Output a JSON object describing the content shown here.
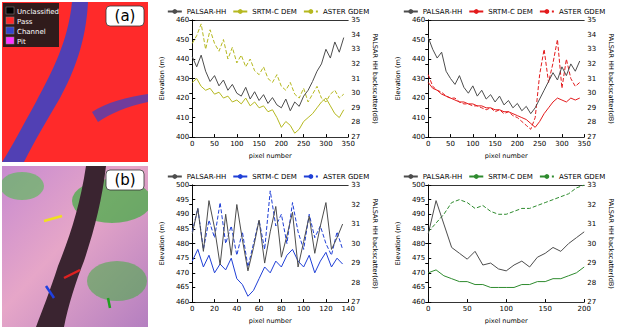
{
  "image_panels": [
    {
      "letter": "(a)",
      "legend": [
        {
          "label": "Unclassified",
          "color": "#000000"
        },
        {
          "label": "Pass",
          "color": "#ff2a2a"
        },
        {
          "label": "Channel",
          "color": "#3344cc"
        },
        {
          "label": "Pit",
          "color": "#ff33ff"
        }
      ]
    },
    {
      "letter": "(b)"
    }
  ],
  "chart_data": [
    {
      "type": "line",
      "x_label": "pixel number",
      "y_label": "Elevation (m)",
      "y2_label": "PALSAR HH backscatter(dB)",
      "legend": "top",
      "x": [
        0,
        10,
        20,
        30,
        40,
        50,
        60,
        70,
        80,
        90,
        100,
        110,
        120,
        130,
        140,
        150,
        160,
        170,
        180,
        190,
        200,
        210,
        220,
        230,
        240,
        250,
        260,
        270,
        280,
        290,
        300,
        310,
        320,
        330,
        340
      ],
      "xlim": [
        0,
        350
      ],
      "xticks": [
        0,
        50,
        100,
        150,
        200,
        250,
        300,
        350
      ],
      "ylim": [
        400,
        460
      ],
      "yticks": [
        400,
        410,
        420,
        430,
        440,
        450,
        460
      ],
      "y2lim": [
        27,
        35
      ],
      "y2ticks": [
        27,
        28,
        29,
        30,
        31,
        32,
        33,
        34,
        35
      ],
      "series": [
        {
          "name": "PALSAR-HH",
          "color": "#4d4d4d",
          "line_style": "solid",
          "axis": "y2",
          "values": [
            32.5,
            31.8,
            32.6,
            31.5,
            30.8,
            31.2,
            30.5,
            30.9,
            30.2,
            30.6,
            30.0,
            29.8,
            30.4,
            29.6,
            30.1,
            29.5,
            29.9,
            29.3,
            29.7,
            29.2,
            29.0,
            29.6,
            28.8,
            29.4,
            29.1,
            29.8,
            30.2,
            30.8,
            31.5,
            32.0,
            33.0,
            32.4,
            33.5,
            32.8,
            33.8
          ]
        },
        {
          "name": "SRTM-C DEM",
          "color": "#b5b820",
          "line_style": "solid",
          "values": [
            428,
            430,
            426,
            424,
            425,
            422,
            423,
            420,
            421,
            418,
            419,
            417,
            420,
            416,
            418,
            415,
            416,
            413,
            414,
            410,
            405,
            408,
            406,
            402,
            404,
            408,
            410,
            412,
            415,
            418,
            420,
            416,
            412,
            410,
            414
          ]
        },
        {
          "name": "ASTER GDEM",
          "color": "#b5b820",
          "line_style": "dashed",
          "values": [
            448,
            452,
            458,
            445,
            455,
            448,
            444,
            450,
            440,
            446,
            438,
            442,
            436,
            440,
            434,
            432,
            436,
            430,
            428,
            432,
            426,
            424,
            428,
            422,
            420,
            425,
            418,
            422,
            426,
            420,
            418,
            422,
            424,
            420,
            422
          ]
        }
      ]
    },
    {
      "type": "line",
      "x_label": "pixel number",
      "y_label": "Elevation (m)",
      "y2_label": "PALSAR HH backscatter(dB)",
      "legend": "top",
      "x": [
        0,
        10,
        20,
        30,
        40,
        50,
        60,
        70,
        80,
        90,
        100,
        110,
        120,
        130,
        140,
        150,
        160,
        170,
        180,
        190,
        200,
        210,
        220,
        230,
        240,
        250,
        260,
        270,
        280,
        290,
        300,
        310,
        320,
        330,
        340
      ],
      "xlim": [
        0,
        350
      ],
      "xticks": [
        0,
        50,
        100,
        150,
        200,
        250,
        300,
        350
      ],
      "ylim": [
        400,
        460
      ],
      "yticks": [
        400,
        410,
        420,
        430,
        440,
        450,
        460
      ],
      "y2lim": [
        27,
        35
      ],
      "y2ticks": [
        27,
        28,
        29,
        30,
        31,
        32,
        33,
        34,
        35
      ],
      "series": [
        {
          "name": "PALSAR-HH",
          "color": "#4d4d4d",
          "line_style": "solid",
          "axis": "y2",
          "values": [
            33.8,
            33.0,
            32.4,
            32.8,
            31.5,
            31.0,
            30.6,
            31.2,
            30.4,
            30.0,
            30.5,
            29.8,
            30.2,
            29.6,
            29.9,
            29.4,
            29.8,
            29.2,
            29.5,
            29.0,
            29.3,
            28.8,
            29.1,
            28.6,
            29.0,
            29.6,
            30.2,
            30.8,
            31.4,
            30.9,
            31.8,
            31.2,
            32.0,
            31.5,
            32.2
          ]
        },
        {
          "name": "SRTM-C DEM",
          "color": "#e31a1c",
          "line_style": "solid",
          "values": [
            428,
            425,
            424,
            422,
            421,
            420,
            419,
            418,
            418,
            417,
            417,
            416,
            416,
            415,
            415,
            414,
            414,
            413,
            413,
            412,
            411,
            410,
            409,
            407,
            405,
            408,
            412,
            415,
            418,
            420,
            419,
            418,
            420,
            419,
            420
          ]
        },
        {
          "name": "ASTER GDEM",
          "color": "#e31a1c",
          "line_style": "dashed",
          "values": [
            432,
            426,
            424,
            423,
            421,
            420,
            420,
            418,
            417,
            417,
            416,
            416,
            415,
            414,
            415,
            413,
            414,
            412,
            413,
            411,
            410,
            408,
            406,
            404,
            410,
            432,
            445,
            428,
            438,
            450,
            425,
            440,
            430,
            426,
            428
          ]
        }
      ]
    },
    {
      "type": "line",
      "x_label": "pixel number",
      "y_label": "Elevation (m)",
      "y2_label": "PALSAR HH backscatter(dB)",
      "legend": "top",
      "x": [
        0,
        5,
        10,
        15,
        20,
        25,
        30,
        35,
        40,
        45,
        50,
        55,
        60,
        65,
        70,
        75,
        80,
        85,
        90,
        95,
        100,
        105,
        110,
        115,
        120,
        125,
        130,
        135
      ],
      "xlim": [
        0,
        140
      ],
      "xticks": [
        0,
        20,
        40,
        60,
        80,
        100,
        120,
        140
      ],
      "ylim": [
        460,
        500
      ],
      "yticks": [
        460,
        465,
        470,
        475,
        480,
        485,
        490,
        495,
        500
      ],
      "y2lim": [
        27,
        33
      ],
      "y2ticks": [
        27,
        28,
        29,
        30,
        31,
        32,
        33
      ],
      "series": [
        {
          "name": "PALSAR-HH",
          "color": "#4d4d4d",
          "line_style": "solid",
          "axis": "y2",
          "values": [
            30.5,
            31.8,
            29.6,
            32.2,
            30.8,
            28.9,
            31.5,
            29.4,
            32.0,
            30.2,
            28.6,
            29.8,
            31.2,
            29.0,
            30.6,
            31.9,
            29.3,
            30.4,
            31.6,
            28.8,
            30.1,
            31.4,
            29.5,
            30.9,
            32.1,
            29.7,
            30.3,
            31.0
          ]
        },
        {
          "name": "SRTM-C DEM",
          "color": "#1f3fd6",
          "line_style": "solid",
          "values": [
            474,
            478,
            472,
            476,
            470,
            473,
            471,
            475,
            468,
            466,
            462,
            464,
            468,
            472,
            470,
            474,
            472,
            476,
            478,
            474,
            472,
            476,
            470,
            474,
            477,
            472,
            475,
            473
          ]
        },
        {
          "name": "ASTER GDEM",
          "color": "#1f3fd6",
          "line_style": "dashed",
          "values": [
            484,
            492,
            478,
            488,
            482,
            494,
            480,
            486,
            476,
            484,
            472,
            480,
            488,
            478,
            498,
            486,
            490,
            480,
            494,
            484,
            478,
            490,
            482,
            486,
            480,
            476,
            484,
            478
          ]
        }
      ]
    },
    {
      "type": "line",
      "x_label": "pixel number",
      "y_label": "Elevation (m)",
      "y2_label": "PALSAR HH backscatter(dB)",
      "legend": "top",
      "x": [
        0,
        10,
        20,
        30,
        40,
        50,
        60,
        70,
        80,
        90,
        100,
        110,
        120,
        130,
        140,
        150,
        160,
        170,
        180,
        190,
        200
      ],
      "xlim": [
        0,
        200
      ],
      "xticks": [
        0,
        50,
        100,
        150,
        200
      ],
      "ylim": [
        460,
        500
      ],
      "yticks": [
        460,
        465,
        470,
        475,
        480,
        485,
        490,
        495,
        500
      ],
      "y2lim": [
        27,
        33
      ],
      "y2ticks": [
        27,
        28,
        29,
        30,
        31,
        32,
        33
      ],
      "series": [
        {
          "name": "PALSAR-HH",
          "color": "#4d4d4d",
          "line_style": "solid",
          "axis": "y2",
          "values": [
            30.5,
            32.2,
            31.0,
            29.8,
            29.5,
            29.2,
            29.6,
            28.9,
            29.0,
            28.7,
            28.6,
            28.9,
            29.1,
            28.8,
            29.3,
            29.5,
            29.8,
            29.6,
            30.0,
            30.3,
            30.6
          ]
        },
        {
          "name": "SRTM-C DEM",
          "color": "#2e8b2e",
          "line_style": "solid",
          "values": [
            470,
            471,
            469,
            468,
            467,
            467,
            466,
            466,
            465,
            465,
            465,
            465,
            466,
            466,
            467,
            467,
            468,
            468,
            469,
            470,
            472
          ]
        },
        {
          "name": "ASTER GDEM",
          "color": "#2e8b2e",
          "line_style": "dashed",
          "values": [
            484,
            487,
            490,
            494,
            495,
            494,
            492,
            493,
            491,
            490,
            490,
            491,
            492,
            492,
            493,
            494,
            495,
            496,
            497,
            499,
            500
          ]
        }
      ]
    }
  ]
}
